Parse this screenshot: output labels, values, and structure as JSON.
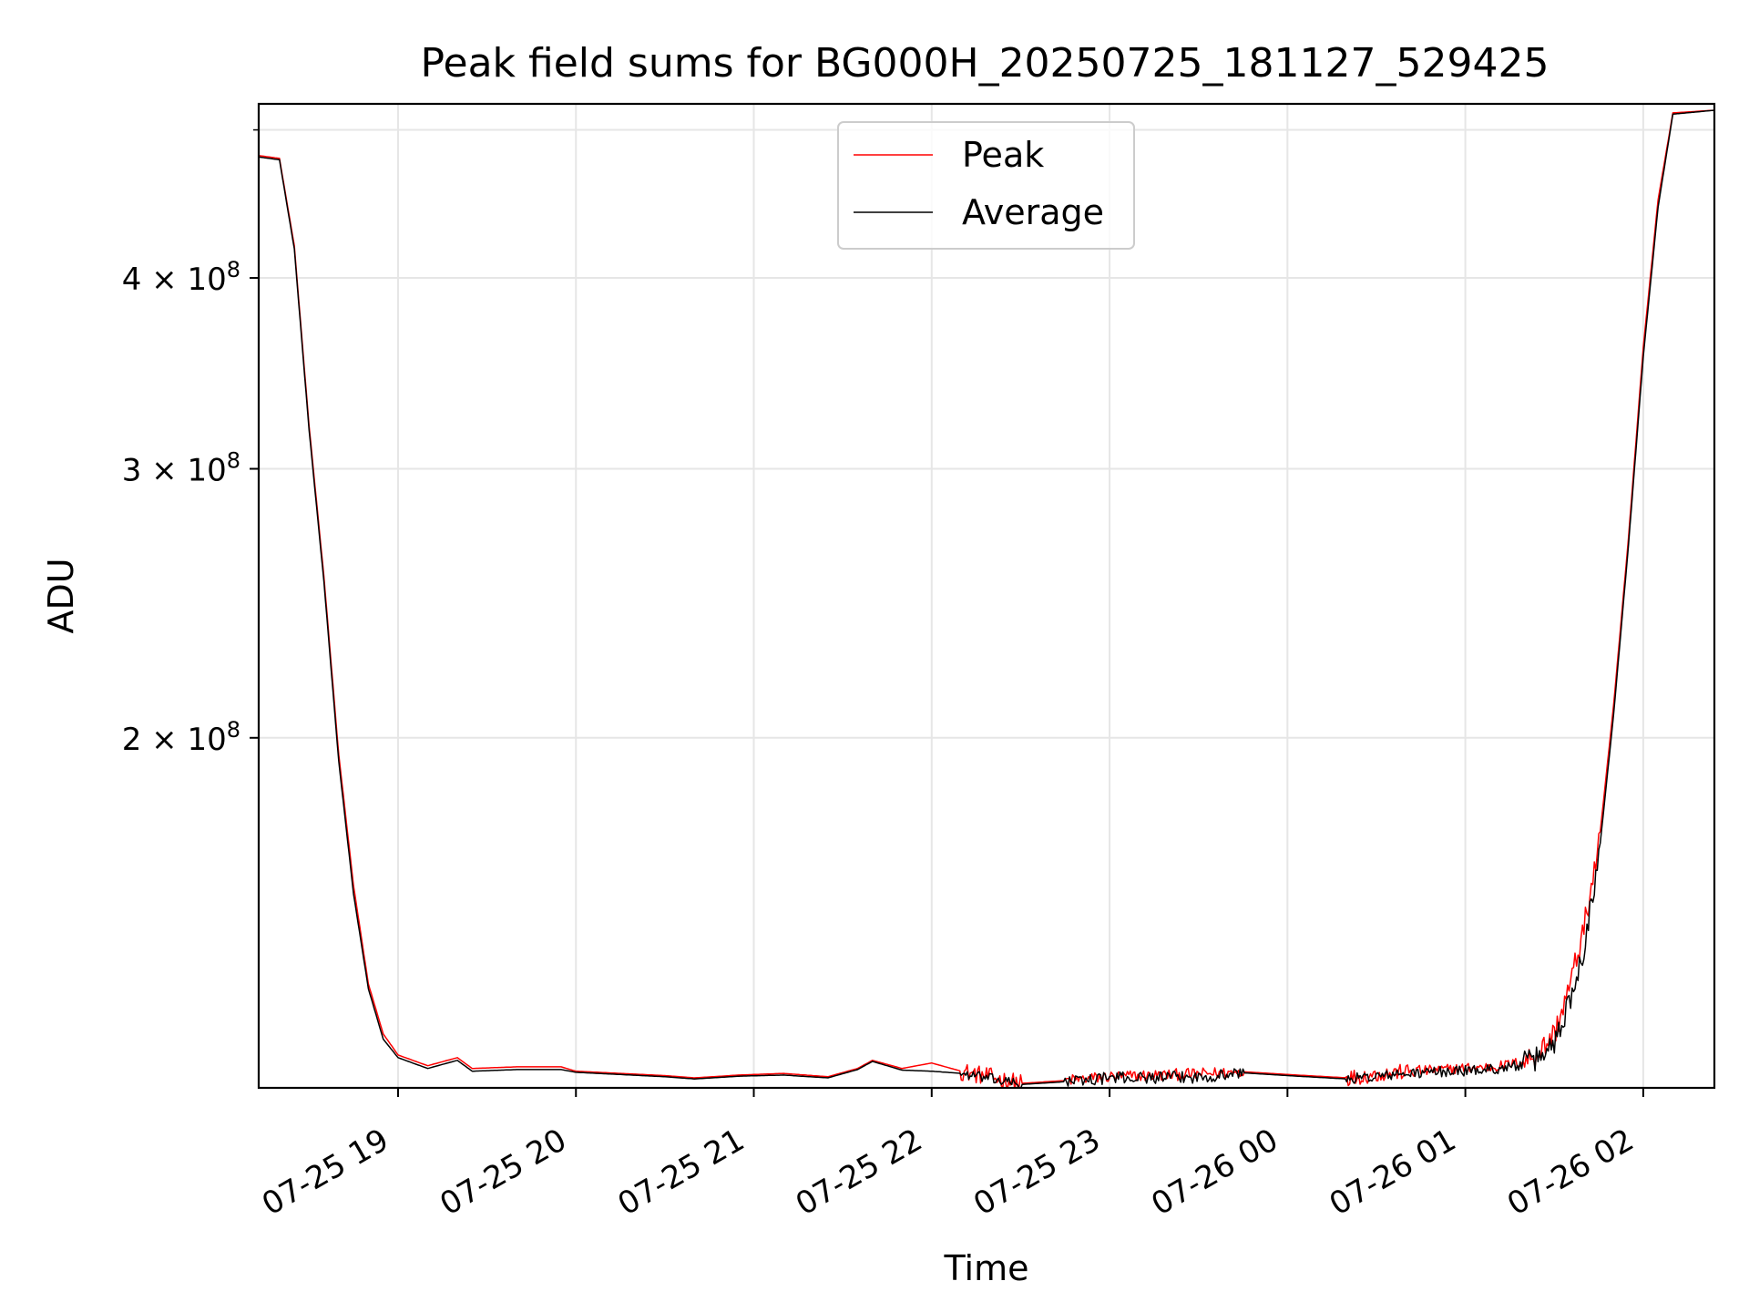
{
  "chart_data": {
    "type": "line",
    "title": "Peak field sums for BG000H_20250725_181127_529425",
    "xlabel": "Time",
    "ylabel": "ADU",
    "yscale": "log",
    "xlim": [
      "07-25 18:13",
      "07-26 02:24"
    ],
    "ylim": [
      118000000,
      520000000
    ],
    "grid": true,
    "legend": "upper center",
    "x_ticks": [
      {
        "time": "07-25 19:00",
        "label": "07-25 19"
      },
      {
        "time": "07-25 20:00",
        "label": "07-25 20"
      },
      {
        "time": "07-25 21:00",
        "label": "07-25 21"
      },
      {
        "time": "07-25 22:00",
        "label": "07-25 22"
      },
      {
        "time": "07-25 23:00",
        "label": "07-25 23"
      },
      {
        "time": "07-26 00:00",
        "label": "07-26 00"
      },
      {
        "time": "07-26 01:00",
        "label": "07-26 01"
      },
      {
        "time": "07-26 02:00",
        "label": "07-26 02"
      }
    ],
    "y_ticks": [
      {
        "value": 200000000,
        "mantissa": "2",
        "exp": "8"
      },
      {
        "value": 300000000,
        "mantissa": "3",
        "exp": "8"
      },
      {
        "value": 400000000,
        "mantissa": "4",
        "exp": "8"
      }
    ],
    "y_minor_ticks": [
      500000000
    ],
    "series": [
      {
        "name": "Peak",
        "color": "#ff0000",
        "noise": [
          {
            "from": "07-25 22:10",
            "to": "07-25 22:30",
            "amp": 0.014
          },
          {
            "from": "07-25 22:45",
            "to": "07-25 23:45",
            "amp": 0.009
          },
          {
            "from": "07-26 00:20",
            "to": "07-26 00:45",
            "amp": 0.012
          },
          {
            "from": "07-26 00:45",
            "to": "07-26 01:20",
            "amp": 0.008
          },
          {
            "from": "07-26 01:20",
            "to": "07-26 01:45",
            "amp": 0.02
          }
        ],
        "points": [
          [
            "07-25 18:13",
            481000000
          ],
          [
            "07-25 18:20",
            479000000
          ],
          [
            "07-25 18:25",
            420000000
          ],
          [
            "07-25 18:30",
            320000000
          ],
          [
            "07-25 18:35",
            255000000
          ],
          [
            "07-25 18:40",
            195000000
          ],
          [
            "07-25 18:45",
            160000000
          ],
          [
            "07-25 18:50",
            138000000
          ],
          [
            "07-25 18:55",
            128000000
          ],
          [
            "07-25 19:00",
            124000000
          ],
          [
            "07-25 19:10",
            122000000
          ],
          [
            "07-25 19:20",
            123500000
          ],
          [
            "07-25 19:25",
            121500000
          ],
          [
            "07-25 19:40",
            121800000
          ],
          [
            "07-25 19:55",
            121800000
          ],
          [
            "07-25 20:00",
            121000000
          ],
          [
            "07-25 20:30",
            120200000
          ],
          [
            "07-25 20:40",
            119800000
          ],
          [
            "07-25 20:55",
            120300000
          ],
          [
            "07-25 21:10",
            120600000
          ],
          [
            "07-25 21:25",
            120000000
          ],
          [
            "07-25 21:35",
            121500000
          ],
          [
            "07-25 21:40",
            123000000
          ],
          [
            "07-25 21:50",
            121500000
          ],
          [
            "07-25 22:00",
            122500000
          ],
          [
            "07-25 22:10",
            121000000
          ],
          [
            "07-25 22:30",
            118800000
          ],
          [
            "07-25 22:45",
            119300000
          ],
          [
            "07-25 23:00",
            120000000
          ],
          [
            "07-25 23:30",
            120500000
          ],
          [
            "07-25 23:45",
            120900000
          ],
          [
            "07-26 00:00",
            120400000
          ],
          [
            "07-26 00:20",
            119800000
          ],
          [
            "07-26 00:35",
            120700000
          ],
          [
            "07-26 00:50",
            121200000
          ],
          [
            "07-26 01:00",
            121600000
          ],
          [
            "07-26 01:10",
            121800000
          ],
          [
            "07-26 01:20",
            122800000
          ],
          [
            "07-26 01:25",
            124500000
          ],
          [
            "07-26 01:30",
            128000000
          ],
          [
            "07-26 01:35",
            137000000
          ],
          [
            "07-26 01:40",
            150000000
          ],
          [
            "07-26 01:45",
            170000000
          ],
          [
            "07-26 01:50",
            210000000
          ],
          [
            "07-26 01:55",
            270000000
          ],
          [
            "07-26 02:00",
            360000000
          ],
          [
            "07-26 02:05",
            450000000
          ],
          [
            "07-26 02:10",
            513000000
          ],
          [
            "07-26 02:24",
            515000000
          ]
        ]
      },
      {
        "name": "Average",
        "color": "#000000",
        "noise": [
          {
            "from": "07-25 22:10",
            "to": "07-25 22:30",
            "amp": 0.008
          },
          {
            "from": "07-25 22:45",
            "to": "07-25 23:45",
            "amp": 0.009
          },
          {
            "from": "07-26 00:20",
            "to": "07-26 01:20",
            "amp": 0.008
          },
          {
            "from": "07-26 01:20",
            "to": "07-26 01:45",
            "amp": 0.02
          }
        ],
        "points": [
          [
            "07-25 18:13",
            480000000
          ],
          [
            "07-25 18:20",
            478000000
          ],
          [
            "07-25 18:25",
            418000000
          ],
          [
            "07-25 18:30",
            318000000
          ],
          [
            "07-25 18:35",
            253000000
          ],
          [
            "07-25 18:40",
            193000000
          ],
          [
            "07-25 18:45",
            158000000
          ],
          [
            "07-25 18:50",
            137000000
          ],
          [
            "07-25 18:55",
            127000000
          ],
          [
            "07-25 19:00",
            123500000
          ],
          [
            "07-25 19:10",
            121500000
          ],
          [
            "07-25 19:20",
            123000000
          ],
          [
            "07-25 19:25",
            121000000
          ],
          [
            "07-25 19:40",
            121300000
          ],
          [
            "07-25 19:55",
            121300000
          ],
          [
            "07-25 20:00",
            120800000
          ],
          [
            "07-25 20:30",
            120000000
          ],
          [
            "07-25 20:40",
            119600000
          ],
          [
            "07-25 20:55",
            120100000
          ],
          [
            "07-25 21:10",
            120300000
          ],
          [
            "07-25 21:25",
            119800000
          ],
          [
            "07-25 21:35",
            121300000
          ],
          [
            "07-25 21:40",
            122800000
          ],
          [
            "07-25 21:50",
            121200000
          ],
          [
            "07-25 22:00",
            121000000
          ],
          [
            "07-25 22:10",
            120600000
          ],
          [
            "07-25 22:30",
            118600000
          ],
          [
            "07-25 22:45",
            119100000
          ],
          [
            "07-25 23:00",
            119800000
          ],
          [
            "07-25 23:30",
            119900000
          ],
          [
            "07-25 23:45",
            120700000
          ],
          [
            "07-26 00:00",
            120200000
          ],
          [
            "07-26 00:20",
            119600000
          ],
          [
            "07-26 00:35",
            120300000
          ],
          [
            "07-26 00:50",
            120900000
          ],
          [
            "07-26 01:00",
            121100000
          ],
          [
            "07-26 01:10",
            121400000
          ],
          [
            "07-26 01:20",
            122300000
          ],
          [
            "07-26 01:25",
            123500000
          ],
          [
            "07-26 01:30",
            126500000
          ],
          [
            "07-26 01:35",
            134000000
          ],
          [
            "07-26 01:40",
            146000000
          ],
          [
            "07-26 01:45",
            167000000
          ],
          [
            "07-26 01:50",
            207000000
          ],
          [
            "07-26 01:55",
            267000000
          ],
          [
            "07-26 02:00",
            355000000
          ],
          [
            "07-26 02:05",
            445000000
          ],
          [
            "07-26 02:10",
            512000000
          ],
          [
            "07-26 02:24",
            515000000
          ]
        ]
      }
    ]
  }
}
